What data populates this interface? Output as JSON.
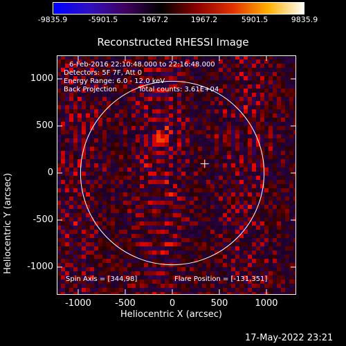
{
  "colorbar": {
    "tick_labels": [
      "-9835.9",
      "-5901.5",
      "-1967.2",
      "1967.2",
      "5901.5",
      "9835.9"
    ],
    "colormap": [
      "#0000ff",
      "#3010c0",
      "#400060",
      "#000000",
      "#8a0000",
      "#e03000",
      "#ffb000",
      "#ffffff"
    ]
  },
  "title": "Reconstructed RHESSI Image",
  "info": {
    "time": "6-Feb-2016 22:10:48.000 to 22:16:48.000",
    "detectors": "Detectors: 5F 7F, Att 0",
    "energy": "Energy Range: 6.0 - 12.0 keV",
    "method": "Back Projection",
    "counts": "Total counts: 3.61E+04",
    "spin_axis": "Spin Axis = [344,98]",
    "flare_position": "Flare Position = [-131,351]"
  },
  "axes": {
    "ylabel": "Heliocentric Y (arcsec)",
    "xlabel": "Heliocentric X (arcsec)",
    "yticks": [
      "1000",
      "500",
      "0",
      "-500",
      "-1000"
    ],
    "xticks": [
      "-1000",
      "-500",
      "0",
      "500",
      "1000"
    ]
  },
  "footer": "17-May-2022 23:21"
}
